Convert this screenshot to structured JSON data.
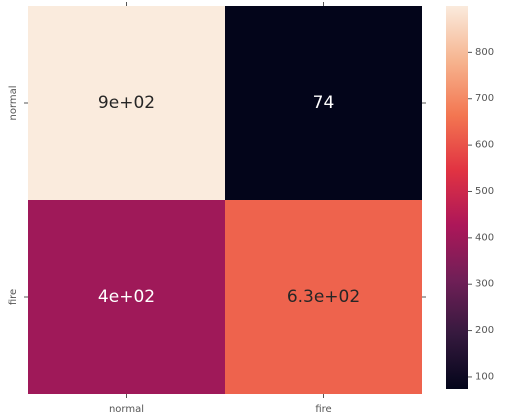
{
  "chart_data": {
    "type": "heatmap",
    "x_categories": [
      "normal",
      "fire"
    ],
    "y_categories": [
      "normal",
      "fire"
    ],
    "values": [
      [
        900,
        74
      ],
      [
        400,
        630
      ]
    ],
    "cell_labels": [
      [
        "9e+02",
        "74"
      ],
      [
        "4e+02",
        "6.3e+02"
      ]
    ],
    "colorbar": {
      "range": [
        74,
        900
      ],
      "ticks": [
        "100",
        "200",
        "300",
        "400",
        "500",
        "600",
        "700",
        "800"
      ],
      "tick_values": [
        100,
        200,
        300,
        400,
        500,
        600,
        700,
        800
      ]
    },
    "colormap": "rocket",
    "colormap_stops": [
      "#03051a",
      "#35193e",
      "#701f57",
      "#ad1759",
      "#e13342",
      "#f37651",
      "#f6b48f",
      "#faebdd"
    ],
    "grid": false
  }
}
